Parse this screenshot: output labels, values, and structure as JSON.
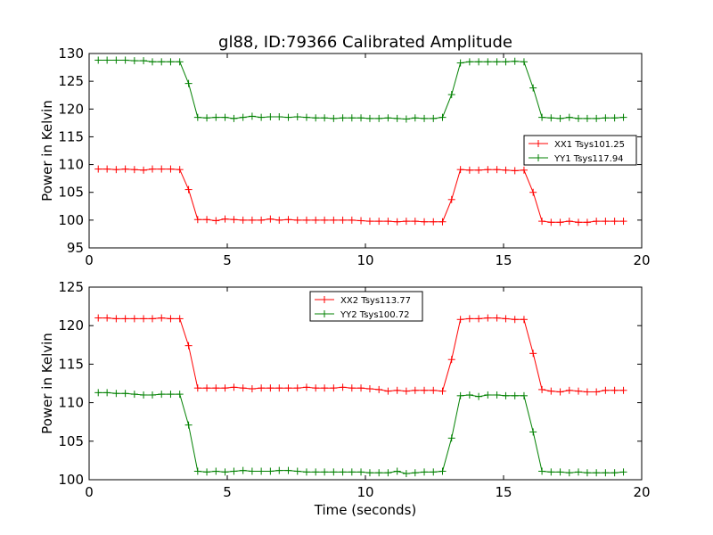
{
  "chart_data": [
    {
      "type": "line",
      "title": "gl88, ID:79366 Calibrated Amplitude",
      "xlabel": "",
      "ylabel": "Power in Kelvin",
      "xlim": [
        0,
        20
      ],
      "ylim": [
        95,
        130
      ],
      "xticks": [
        "0",
        "5",
        "10",
        "15",
        "20"
      ],
      "yticks": [
        "95",
        "100",
        "105",
        "110",
        "115",
        "120",
        "125",
        "130"
      ],
      "legend_position": "center-right",
      "x": [
        0.33,
        0.65,
        0.98,
        1.31,
        1.64,
        1.97,
        2.29,
        2.62,
        2.95,
        3.28,
        3.6,
        3.93,
        4.26,
        4.59,
        4.92,
        5.24,
        5.57,
        5.9,
        6.23,
        6.56,
        6.88,
        7.21,
        7.54,
        7.87,
        8.2,
        8.52,
        8.85,
        9.18,
        9.51,
        9.84,
        10.16,
        10.49,
        10.82,
        11.15,
        11.48,
        11.8,
        12.13,
        12.46,
        12.79,
        13.12,
        13.44,
        13.77,
        14.1,
        14.43,
        14.76,
        15.08,
        15.41,
        15.74,
        16.07,
        16.39,
        16.72,
        17.05,
        17.38,
        17.71,
        18.03,
        18.36,
        18.69,
        19.02,
        19.34
      ],
      "series": [
        {
          "name": "XX1 Tsys101.25",
          "color": "#ff0000",
          "values": [
            109.2,
            109.2,
            109.1,
            109.2,
            109.1,
            109.0,
            109.2,
            109.2,
            109.2,
            109.1,
            105.5,
            100.1,
            100.1,
            99.9,
            100.2,
            100.1,
            100.0,
            100.0,
            100.0,
            100.2,
            100.0,
            100.1,
            100.0,
            100.0,
            100.0,
            100.0,
            100.0,
            100.0,
            100.0,
            99.9,
            99.8,
            99.8,
            99.8,
            99.7,
            99.8,
            99.8,
            99.7,
            99.7,
            99.7,
            103.7,
            109.1,
            109.0,
            109.0,
            109.1,
            109.1,
            109.0,
            108.9,
            109.0,
            105.0,
            99.8,
            99.6,
            99.6,
            99.8,
            99.6,
            99.6,
            99.8,
            99.8,
            99.8,
            99.8
          ]
        },
        {
          "name": "YY1 Tsys117.94",
          "color": "#008000",
          "values": [
            128.8,
            128.8,
            128.8,
            128.8,
            128.7,
            128.7,
            128.5,
            128.5,
            128.5,
            128.5,
            124.6,
            118.5,
            118.4,
            118.5,
            118.5,
            118.3,
            118.5,
            118.7,
            118.5,
            118.6,
            118.6,
            118.5,
            118.6,
            118.5,
            118.4,
            118.4,
            118.3,
            118.4,
            118.4,
            118.4,
            118.3,
            118.3,
            118.4,
            118.3,
            118.2,
            118.4,
            118.3,
            118.3,
            118.5,
            122.6,
            128.3,
            128.5,
            128.5,
            128.5,
            128.5,
            128.5,
            128.6,
            128.5,
            123.8,
            118.5,
            118.4,
            118.3,
            118.5,
            118.3,
            118.3,
            118.3,
            118.4,
            118.4,
            118.5
          ]
        }
      ]
    },
    {
      "type": "line",
      "title": "",
      "xlabel": "Time (seconds)",
      "ylabel": "Power in Kelvin",
      "xlim": [
        0,
        20
      ],
      "ylim": [
        100,
        125
      ],
      "xticks": [
        "0",
        "5",
        "10",
        "15",
        "20"
      ],
      "yticks": [
        "100",
        "105",
        "110",
        "115",
        "120",
        "125"
      ],
      "legend_position": "upper-center",
      "x": [
        0.33,
        0.65,
        0.98,
        1.31,
        1.64,
        1.97,
        2.29,
        2.62,
        2.95,
        3.28,
        3.6,
        3.93,
        4.26,
        4.59,
        4.92,
        5.24,
        5.57,
        5.9,
        6.23,
        6.56,
        6.88,
        7.21,
        7.54,
        7.87,
        8.2,
        8.52,
        8.85,
        9.18,
        9.51,
        9.84,
        10.16,
        10.49,
        10.82,
        11.15,
        11.48,
        11.8,
        12.13,
        12.46,
        12.79,
        13.12,
        13.44,
        13.77,
        14.1,
        14.43,
        14.76,
        15.08,
        15.41,
        15.74,
        16.07,
        16.39,
        16.72,
        17.05,
        17.38,
        17.71,
        18.03,
        18.36,
        18.69,
        19.02,
        19.34
      ],
      "series": [
        {
          "name": "XX2 Tsys113.77",
          "color": "#ff0000",
          "values": [
            121.0,
            121.0,
            120.9,
            120.9,
            120.9,
            120.9,
            120.9,
            121.0,
            120.9,
            120.9,
            117.4,
            111.9,
            111.9,
            111.9,
            111.9,
            112.0,
            111.9,
            111.8,
            111.9,
            111.9,
            111.9,
            111.9,
            111.9,
            112.0,
            111.9,
            111.9,
            111.9,
            112.0,
            111.9,
            111.9,
            111.8,
            111.7,
            111.5,
            111.6,
            111.5,
            111.6,
            111.6,
            111.6,
            111.5,
            115.6,
            120.8,
            120.9,
            120.9,
            121.0,
            121.0,
            120.9,
            120.8,
            120.8,
            116.4,
            111.7,
            111.5,
            111.4,
            111.6,
            111.5,
            111.4,
            111.4,
            111.6,
            111.6,
            111.6
          ]
        },
        {
          "name": "YY2 Tsys100.72",
          "color": "#008000",
          "values": [
            111.3,
            111.3,
            111.2,
            111.2,
            111.1,
            111.0,
            111.0,
            111.1,
            111.1,
            111.1,
            107.1,
            101.1,
            101.0,
            101.1,
            101.0,
            101.1,
            101.2,
            101.1,
            101.1,
            101.1,
            101.2,
            101.2,
            101.1,
            101.0,
            101.0,
            101.0,
            101.0,
            101.0,
            101.0,
            101.0,
            100.9,
            100.9,
            100.9,
            101.1,
            100.8,
            100.9,
            101.0,
            101.0,
            101.1,
            105.4,
            110.9,
            111.0,
            110.8,
            111.0,
            111.0,
            110.9,
            110.9,
            110.9,
            106.2,
            101.1,
            101.0,
            101.0,
            100.9,
            101.0,
            100.9,
            100.9,
            100.9,
            100.9,
            101.0
          ]
        }
      ]
    }
  ]
}
